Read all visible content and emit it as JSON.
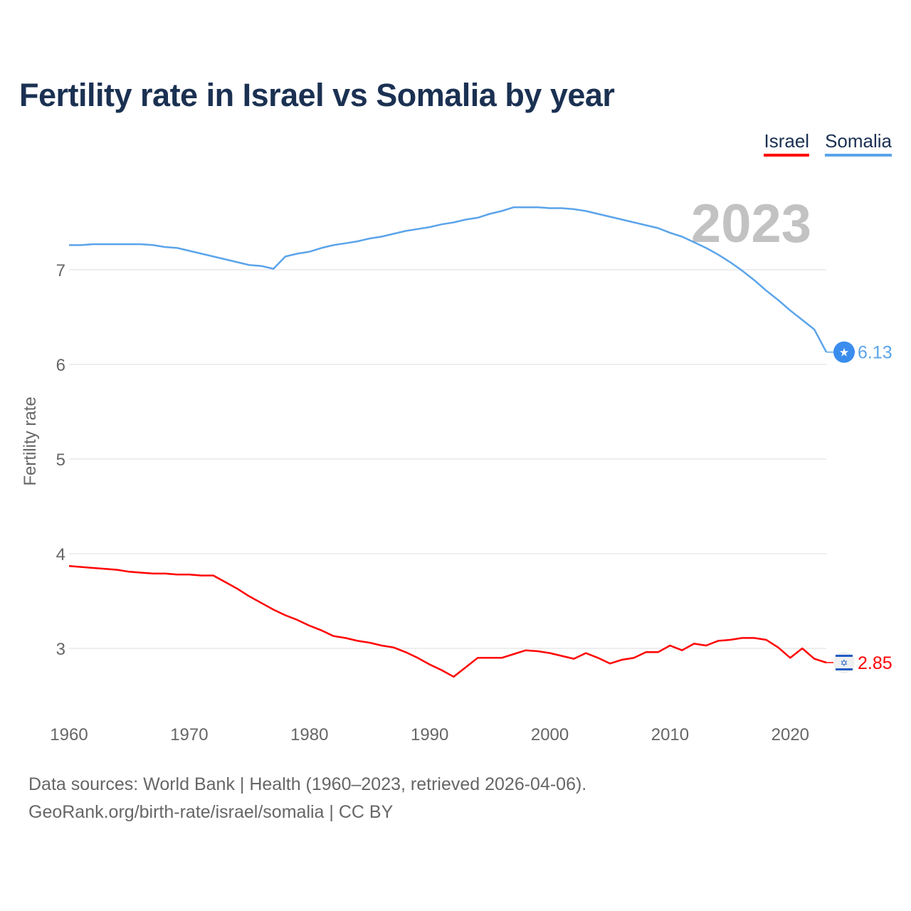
{
  "chart_data": {
    "type": "line",
    "title": "Fertility rate in Israel vs Somalia by year",
    "xlabel": "",
    "ylabel": "Fertility rate",
    "xlim": [
      1960,
      2023
    ],
    "ylim": [
      2.5,
      7.8
    ],
    "xticks": [
      1960,
      1970,
      1980,
      1990,
      2000,
      2010,
      2020
    ],
    "yticks": [
      3,
      4,
      5,
      6,
      7
    ],
    "grid": true,
    "legend_position": "top-right",
    "year_watermark": "2023",
    "x": [
      1960,
      1961,
      1962,
      1963,
      1964,
      1965,
      1966,
      1967,
      1968,
      1969,
      1970,
      1971,
      1972,
      1973,
      1974,
      1975,
      1976,
      1977,
      1978,
      1979,
      1980,
      1981,
      1982,
      1983,
      1984,
      1985,
      1986,
      1987,
      1988,
      1989,
      1990,
      1991,
      1992,
      1993,
      1994,
      1995,
      1996,
      1997,
      1998,
      1999,
      2000,
      2001,
      2002,
      2003,
      2004,
      2005,
      2006,
      2007,
      2008,
      2009,
      2010,
      2011,
      2012,
      2013,
      2014,
      2015,
      2016,
      2017,
      2018,
      2019,
      2020,
      2021,
      2022,
      2023
    ],
    "series": [
      {
        "name": "Israel",
        "color": "#ff0000",
        "end_label": "2.85",
        "flag": "israel-flag",
        "values": [
          3.87,
          3.86,
          3.85,
          3.84,
          3.83,
          3.81,
          3.8,
          3.79,
          3.79,
          3.78,
          3.78,
          3.77,
          3.77,
          3.7,
          3.63,
          3.55,
          3.48,
          3.41,
          3.35,
          3.3,
          3.24,
          3.19,
          3.13,
          3.11,
          3.08,
          3.06,
          3.03,
          3.01,
          2.96,
          2.9,
          2.83,
          2.77,
          2.7,
          2.8,
          2.9,
          2.9,
          2.9,
          2.94,
          2.98,
          2.97,
          2.95,
          2.92,
          2.89,
          2.95,
          2.9,
          2.84,
          2.88,
          2.9,
          2.96,
          2.96,
          3.03,
          2.98,
          3.05,
          3.03,
          3.08,
          3.09,
          3.11,
          3.11,
          3.09,
          3.01,
          2.9,
          3.0,
          2.89,
          2.85
        ]
      },
      {
        "name": "Somalia",
        "color": "#5ba4ea",
        "end_label": "6.13",
        "flag": "somalia-flag",
        "values": [
          7.26,
          7.26,
          7.27,
          7.27,
          7.27,
          7.27,
          7.27,
          7.26,
          7.24,
          7.23,
          7.2,
          7.17,
          7.14,
          7.11,
          7.08,
          7.05,
          7.04,
          7.01,
          7.14,
          7.17,
          7.19,
          7.23,
          7.26,
          7.28,
          7.3,
          7.33,
          7.35,
          7.38,
          7.41,
          7.43,
          7.45,
          7.48,
          7.5,
          7.53,
          7.55,
          7.59,
          7.62,
          7.66,
          7.66,
          7.66,
          7.65,
          7.65,
          7.64,
          7.62,
          7.59,
          7.56,
          7.53,
          7.5,
          7.47,
          7.44,
          7.39,
          7.35,
          7.29,
          7.23,
          7.16,
          7.08,
          6.99,
          6.89,
          6.78,
          6.68,
          6.57,
          6.47,
          6.37,
          6.13
        ]
      }
    ]
  },
  "footer": {
    "line1": "Data sources: World Bank | Health (1960–2023, retrieved 2026-04-06).",
    "line2": "GeoRank.org/birth-rate/israel/somalia | CC BY"
  }
}
